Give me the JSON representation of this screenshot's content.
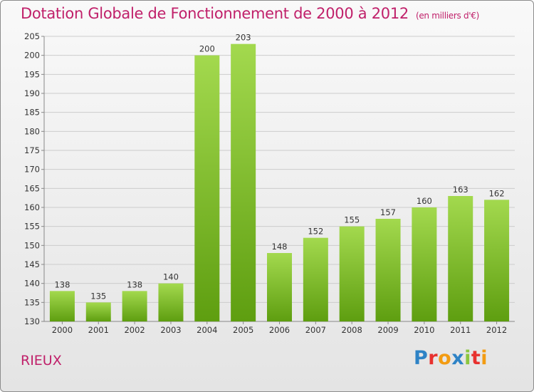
{
  "header": {
    "title": "Dotation Globale de Fonctionnement de 2000 à 2012",
    "subtitle": "(en milliers d'€)"
  },
  "footer": {
    "commune": "RIEUX",
    "logo_text": "Proxiti",
    "logo_colors": [
      "#2e83c6",
      "#e8312f",
      "#f39c12",
      "#2e83c6",
      "#8cc63f",
      "#e8312f",
      "#f39c12"
    ]
  },
  "colors": {
    "bar_light": "#a3d94e",
    "bar_dark": "#5e9e10",
    "title": "#c0206a"
  },
  "chart_data": {
    "type": "bar",
    "title": "Dotation Globale de Fonctionnement de 2000 à 2012",
    "subtitle": "(en milliers d'€)",
    "categories": [
      "2000",
      "2001",
      "2002",
      "2003",
      "2004",
      "2005",
      "2006",
      "2007",
      "2008",
      "2009",
      "2010",
      "2011",
      "2012"
    ],
    "values": [
      138,
      135,
      138,
      140,
      200,
      203,
      148,
      152,
      155,
      157,
      160,
      163,
      162
    ],
    "ylim": [
      130,
      205
    ],
    "yticks": [
      130,
      135,
      140,
      145,
      150,
      155,
      160,
      165,
      170,
      175,
      180,
      185,
      190,
      195,
      200,
      205
    ],
    "grid": true,
    "xlabel": "",
    "ylabel": ""
  }
}
